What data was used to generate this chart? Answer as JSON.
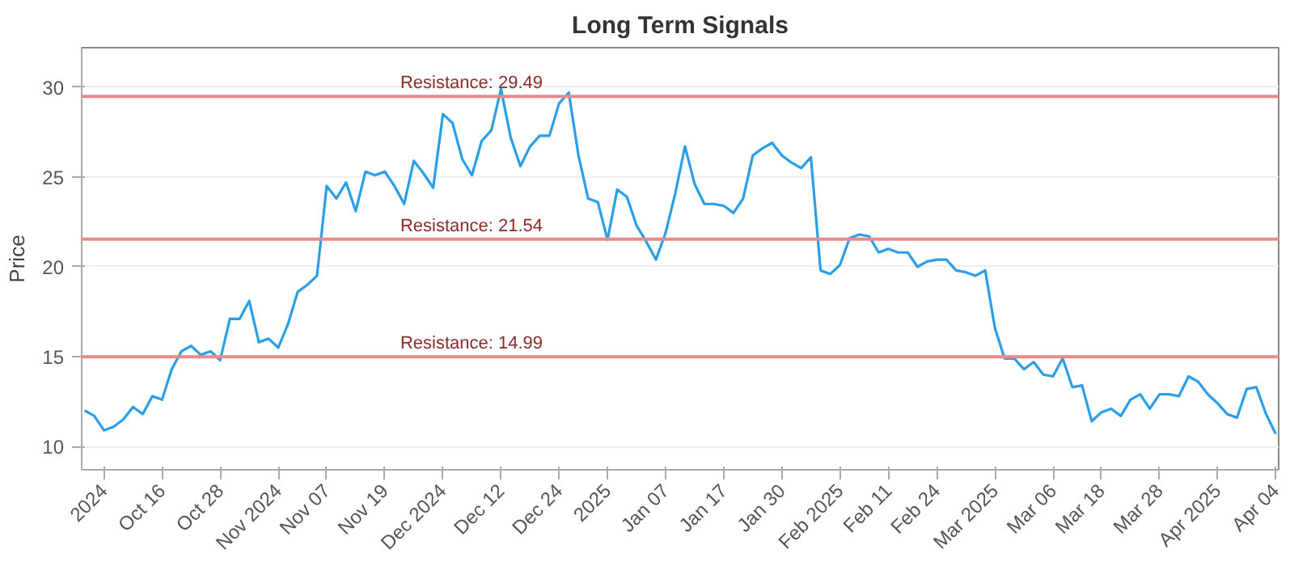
{
  "chart_data": {
    "type": "line",
    "title": "Long Term Signals",
    "ylabel": "Price",
    "ylim": [
      8.7,
      32.2
    ],
    "yticks": [
      10,
      15,
      20,
      25,
      30
    ],
    "grid": "y",
    "marker": "none",
    "line_style": "solid",
    "categories": [
      null,
      null,
      "2024",
      null,
      null,
      null,
      null,
      null,
      "Oct 16",
      null,
      null,
      null,
      null,
      null,
      "Oct 28",
      null,
      null,
      null,
      null,
      null,
      "Nov 2024",
      null,
      null,
      null,
      null,
      "Nov 07",
      null,
      null,
      null,
      null,
      null,
      "Nov 19",
      null,
      null,
      null,
      null,
      null,
      "Dec 2024",
      null,
      null,
      null,
      null,
      null,
      "Dec 12",
      null,
      null,
      null,
      null,
      null,
      "Dec 24",
      null,
      null,
      null,
      null,
      "2025",
      null,
      null,
      null,
      null,
      null,
      "Jan 07",
      null,
      null,
      null,
      null,
      null,
      "Jan 17",
      null,
      null,
      null,
      null,
      null,
      "Jan 30",
      null,
      null,
      null,
      null,
      null,
      "Feb 2025",
      null,
      null,
      null,
      null,
      "Feb 11",
      null,
      null,
      null,
      null,
      "Feb 24",
      null,
      null,
      null,
      null,
      null,
      "Mar 2025",
      null,
      null,
      null,
      null,
      null,
      "Mar 06",
      null,
      null,
      null,
      null,
      "Mar 18",
      null,
      null,
      null,
      null,
      null,
      "Mar 28",
      null,
      null,
      null,
      null,
      null,
      "Apr 2025",
      null,
      null,
      null,
      null,
      null,
      "Apr 04"
    ],
    "ref_lines": [
      {
        "axis": "y",
        "value": 29.49,
        "label": "Resistance: 29.49",
        "color": "#e88a8a"
      },
      {
        "axis": "y",
        "value": 21.54,
        "label": "Resistance: 21.54",
        "color": "#e88a8a"
      },
      {
        "axis": "y",
        "value": 14.99,
        "label": "Resistance: 14.99",
        "color": "#e88a8a"
      }
    ],
    "series": [
      {
        "color": "#2a9fe8",
        "values": [
          12.0,
          11.7,
          10.9,
          11.1,
          11.5,
          12.2,
          11.8,
          12.8,
          12.6,
          14.3,
          15.3,
          15.6,
          15.1,
          15.3,
          14.8,
          17.1,
          17.1,
          18.1,
          15.8,
          16.0,
          15.5,
          16.8,
          18.6,
          19.0,
          19.5,
          24.5,
          23.8,
          24.7,
          23.1,
          25.3,
          25.1,
          25.3,
          24.5,
          23.5,
          25.9,
          25.2,
          24.4,
          28.5,
          28.0,
          26.0,
          25.1,
          27.0,
          27.6,
          29.9,
          27.2,
          25.6,
          26.7,
          27.3,
          27.3,
          29.1,
          29.7,
          26.2,
          23.8,
          23.6,
          21.5,
          24.3,
          23.9,
          22.3,
          21.4,
          20.4,
          21.9,
          24.1,
          26.7,
          24.6,
          23.5,
          23.5,
          23.4,
          23.0,
          23.8,
          26.2,
          26.6,
          26.9,
          26.2,
          25.8,
          25.5,
          26.1,
          19.8,
          19.6,
          20.1,
          21.6,
          21.8,
          21.7,
          20.8,
          21.0,
          20.8,
          20.8,
          20.0,
          20.3,
          20.4,
          20.4,
          19.8,
          19.7,
          19.5,
          19.8,
          16.6,
          14.9,
          14.9,
          14.3,
          14.7,
          14.0,
          13.9,
          14.9,
          13.3,
          13.4,
          11.4,
          11.9,
          12.1,
          11.7,
          12.6,
          12.9,
          12.1,
          12.9,
          12.9,
          12.8,
          13.9,
          13.6,
          12.9,
          12.4,
          11.8,
          11.6,
          13.2,
          13.3,
          11.8,
          10.7
        ]
      }
    ]
  }
}
